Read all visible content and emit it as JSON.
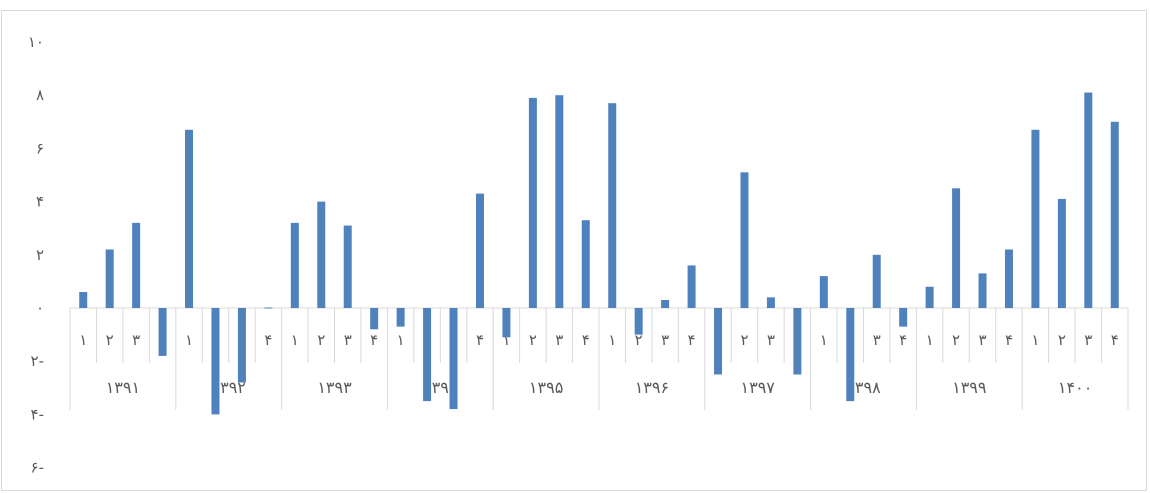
{
  "chart_data": {
    "type": "bar",
    "title": "",
    "xlabel": "",
    "ylabel": "",
    "ylim": [
      -6,
      10
    ],
    "y_ticks": [
      "۶-",
      "۴-",
      "۲-",
      "۰",
      "۲",
      "۴",
      "۶",
      "۸",
      "۱۰"
    ],
    "y_tick_values": [
      -6,
      -4,
      -2,
      0,
      2,
      4,
      6,
      8,
      10
    ],
    "grid": false,
    "legend": "none",
    "bar_color": "#4f81bd",
    "groups": [
      {
        "label": "۱۳۹۱",
        "quarters": [
          "۱",
          "۲",
          "۳",
          "۴"
        ],
        "values": [
          0.6,
          2.2,
          3.2,
          -1.8
        ]
      },
      {
        "label": "۱۳۹۲",
        "quarters": [
          "۱",
          "۲",
          "۳",
          "۴"
        ],
        "values": [
          6.7,
          -4.0,
          -2.8,
          0.0
        ]
      },
      {
        "label": "۱۳۹۳",
        "quarters": [
          "۱",
          "۲",
          "۳",
          "۴"
        ],
        "values": [
          3.2,
          4.0,
          3.1,
          -0.8
        ]
      },
      {
        "label": "۱۳۹۴",
        "quarters": [
          "۱",
          "۲",
          "۳",
          "۴"
        ],
        "values": [
          -0.7,
          -3.5,
          -3.8,
          4.3
        ]
      },
      {
        "label": "۱۳۹۵",
        "quarters": [
          "۱",
          "۲",
          "۳",
          "۴"
        ],
        "values": [
          -1.1,
          7.9,
          8.0,
          3.3
        ]
      },
      {
        "label": "۱۳۹۶",
        "quarters": [
          "۱",
          "۲",
          "۳",
          "۴"
        ],
        "values": [
          7.7,
          -1.0,
          0.3,
          1.6
        ]
      },
      {
        "label": "۱۳۹۷",
        "quarters": [
          "۱",
          "۲",
          "۳",
          "۴"
        ],
        "values": [
          -2.5,
          5.1,
          0.4,
          -2.5
        ]
      },
      {
        "label": "۱۳۹۸",
        "quarters": [
          "۱",
          "۲",
          "۳",
          "۴"
        ],
        "values": [
          1.2,
          -3.5,
          2.0,
          -0.7
        ]
      },
      {
        "label": "۱۳۹۹",
        "quarters": [
          "۱",
          "۲",
          "۳",
          "۴"
        ],
        "values": [
          0.8,
          4.5,
          1.3,
          2.2
        ]
      },
      {
        "label": "۱۴۰۰",
        "quarters": [
          "۱",
          "۲",
          "۳",
          "۴"
        ],
        "values": [
          6.7,
          4.1,
          8.1,
          7.0
        ]
      }
    ]
  }
}
